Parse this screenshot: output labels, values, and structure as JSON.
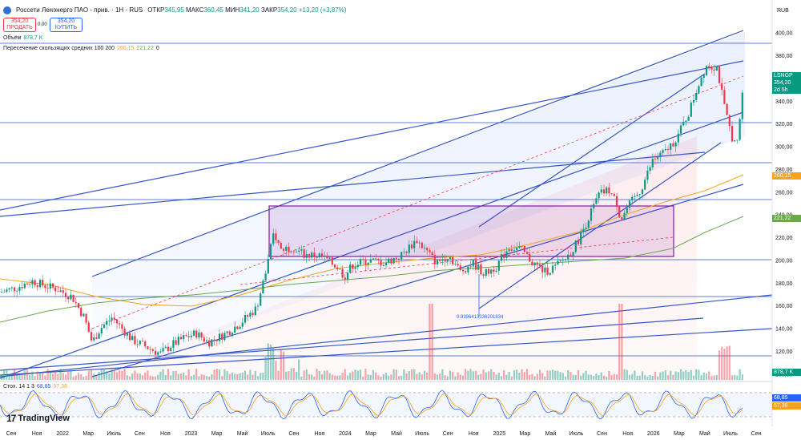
{
  "header": {
    "title": "Россети Ленэнерго ПАО - прив. · 1Н · RUS",
    "open_label": "ОТКР",
    "open_value": "345,95",
    "high_label": "МАКС",
    "high_value": "360,45",
    "low_label": "МИН",
    "low_value": "341,20",
    "close_label": "ЗАКР",
    "close_value": "354,20",
    "change_value": "+13,20 (+3,87%)"
  },
  "trade": {
    "sell_price": "354,20",
    "sell_label": "ПРОДАТЬ",
    "spread": "0,00",
    "buy_price": "354,20",
    "buy_label": "КУПИТЬ"
  },
  "volume": {
    "label": "Объём",
    "value": "878,7 K"
  },
  "ma_indicator": {
    "label": "Пересечение скользящих средних 100 200",
    "ma100": "260,15",
    "ma200": "221,22",
    "extra": "0"
  },
  "stoch": {
    "label": "Стох. 14 1 3",
    "k": "68,85",
    "d": "57,38"
  },
  "fib_label": "0.9396413336201834",
  "currency": "RUB",
  "ticker_tag": {
    "symbol": "LSNGP",
    "price": "354,20",
    "time": "2d 5h"
  },
  "tags": {
    "ma100": "260,15",
    "ma200": "221,22",
    "vol": "878,7 K",
    "stoch_k": "68,85",
    "stoch_d": "57,38"
  },
  "brand": "TradingView",
  "colors": {
    "up": "#089981",
    "down": "#f23645",
    "blue": "#2962ff",
    "ma100": "#f7a21b",
    "ma200": "#6aa84f",
    "purple": "#7b1fa2"
  },
  "chart_data": {
    "type": "candlestick",
    "y_axis_ticks": [
      "400,00",
      "380,00",
      "360,00",
      "340,00",
      "320,00",
      "300,00",
      "280,00",
      "260,00",
      "240,00",
      "220,00",
      "200,00",
      "180,00",
      "160,00",
      "140,00",
      "120,00",
      "100,00"
    ],
    "x_axis_ticks": [
      "Сен",
      "Ноя",
      "2022",
      "Мар",
      "Июль",
      "Сен",
      "Ноя",
      "2023",
      "Мар",
      "Май",
      "Июль",
      "Сен",
      "Ноя",
      "2024",
      "Мар",
      "Май",
      "Июль",
      "Сен",
      "Ноя",
      "2025",
      "Мар",
      "Май",
      "Июль",
      "Сен",
      "Ноя",
      "2026",
      "Мар",
      "Май",
      "Июль",
      "Сен"
    ],
    "last_price": 354.2,
    "ylim": [
      95,
      405
    ]
  }
}
